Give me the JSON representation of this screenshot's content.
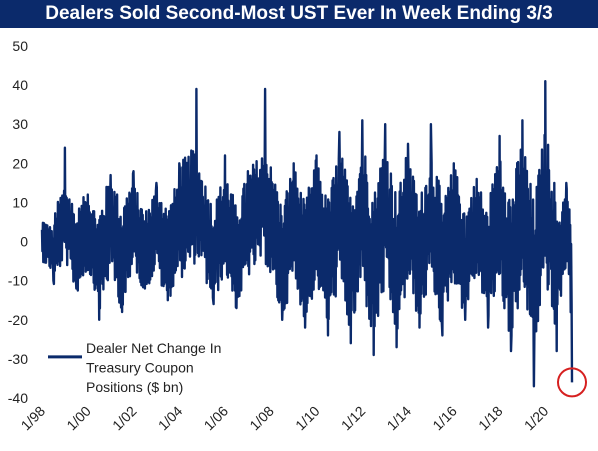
{
  "chart_data": {
    "type": "line",
    "title": "Dealers Sold Second-Most UST Ever In Week Ending 3/3",
    "xlabel": "",
    "ylabel": "",
    "ylim": [
      -40,
      50
    ],
    "yticks": [
      -40,
      -30,
      -20,
      -10,
      0,
      10,
      20,
      30,
      40,
      50
    ],
    "x_range": [
      "1/98",
      "3/21"
    ],
    "xticks": [
      "1/98",
      "1/00",
      "1/02",
      "1/04",
      "1/06",
      "1/08",
      "1/10",
      "1/12",
      "1/14",
      "1/16",
      "1/18",
      "1/20"
    ],
    "grid": false,
    "legend_position": "bottom-left",
    "series": [
      {
        "name": "Dealer Net Change In Treasury Coupon Positions ($ bn)",
        "legend_lines": [
          "Dealer Net Change In",
          "Treasury Coupon",
          "Positions ($ bn)"
        ],
        "color": "#0b2a6b",
        "points": [
          [
            "1/98",
            3
          ],
          [
            "7/98",
            -10
          ],
          [
            "1/99",
            24
          ],
          [
            "7/99",
            -12
          ],
          [
            "1/00",
            12
          ],
          [
            "7/00",
            -20
          ],
          [
            "1/01",
            17
          ],
          [
            "7/01",
            -18
          ],
          [
            "1/02",
            18
          ],
          [
            "7/02",
            -12
          ],
          [
            "1/03",
            15
          ],
          [
            "7/03",
            -15
          ],
          [
            "1/04",
            20
          ],
          [
            "10/04",
            39
          ],
          [
            "7/05",
            -16
          ],
          [
            "1/06",
            22
          ],
          [
            "7/06",
            -17
          ],
          [
            "1/07",
            18
          ],
          [
            "10/07",
            39
          ],
          [
            "7/08",
            -20
          ],
          [
            "1/09",
            20
          ],
          [
            "7/09",
            -22
          ],
          [
            "1/10",
            22
          ],
          [
            "7/10",
            -24
          ],
          [
            "1/11",
            28
          ],
          [
            "7/11",
            -26
          ],
          [
            "1/12",
            31
          ],
          [
            "7/12",
            -29
          ],
          [
            "1/13",
            30
          ],
          [
            "7/13",
            -27
          ],
          [
            "1/14",
            25
          ],
          [
            "7/14",
            -22
          ],
          [
            "1/15",
            30
          ],
          [
            "7/15",
            -24
          ],
          [
            "1/16",
            20
          ],
          [
            "7/16",
            -20
          ],
          [
            "1/17",
            16
          ],
          [
            "7/17",
            -22
          ],
          [
            "1/18",
            27
          ],
          [
            "7/18",
            -28
          ],
          [
            "1/19",
            31
          ],
          [
            "7/19",
            -37
          ],
          [
            "1/20",
            41
          ],
          [
            "7/20",
            -28
          ],
          [
            "12/20",
            15
          ],
          [
            "3/21",
            -36
          ]
        ]
      }
    ],
    "annotations": [
      {
        "type": "circle",
        "target": [
          "3/21",
          -36
        ],
        "color": "#d62020"
      }
    ]
  }
}
